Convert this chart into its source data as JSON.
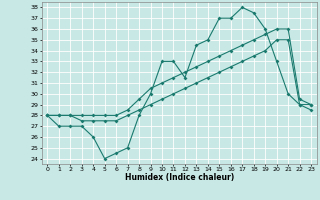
{
  "title": "",
  "xlabel": "Humidex (Indice chaleur)",
  "bg_color": "#c8e8e5",
  "grid_color": "#ffffff",
  "line_color": "#1a7a6e",
  "xlim": [
    -0.5,
    23.5
  ],
  "ylim": [
    23.5,
    38.5
  ],
  "yticks": [
    24,
    25,
    26,
    27,
    28,
    29,
    30,
    31,
    32,
    33,
    34,
    35,
    36,
    37,
    38
  ],
  "xticks": [
    0,
    1,
    2,
    3,
    4,
    5,
    6,
    7,
    8,
    9,
    10,
    11,
    12,
    13,
    14,
    15,
    16,
    17,
    18,
    19,
    20,
    21,
    22,
    23
  ],
  "series1_x": [
    0,
    1,
    2,
    3,
    4,
    5,
    6,
    7,
    8,
    9,
    10,
    11,
    12,
    13,
    14,
    15,
    16,
    17,
    18,
    19,
    20,
    21,
    22,
    23
  ],
  "series1_y": [
    28,
    27,
    27,
    27,
    26,
    24,
    24.5,
    25,
    28,
    30,
    33,
    33,
    31.5,
    34.5,
    35,
    37,
    37,
    38,
    37.5,
    36,
    33,
    30,
    29,
    28.5
  ],
  "series2_x": [
    0,
    1,
    2,
    3,
    4,
    5,
    6,
    7,
    8,
    9,
    10,
    11,
    12,
    13,
    14,
    15,
    16,
    17,
    18,
    19,
    20,
    21,
    22,
    23
  ],
  "series2_y": [
    28,
    28,
    28,
    27.5,
    27.5,
    27.5,
    27.5,
    28,
    28.5,
    29,
    29.5,
    30,
    30.5,
    31,
    31.5,
    32,
    32.5,
    33,
    33.5,
    34,
    35,
    35,
    29,
    29
  ],
  "series3_x": [
    0,
    1,
    2,
    3,
    4,
    5,
    6,
    7,
    8,
    9,
    10,
    11,
    12,
    13,
    14,
    15,
    16,
    17,
    18,
    19,
    20,
    21,
    22,
    23
  ],
  "series3_y": [
    28,
    28,
    28,
    28,
    28,
    28,
    28,
    28.5,
    29.5,
    30.5,
    31,
    31.5,
    32,
    32.5,
    33,
    33.5,
    34,
    34.5,
    35,
    35.5,
    36,
    36,
    29.5,
    29
  ]
}
